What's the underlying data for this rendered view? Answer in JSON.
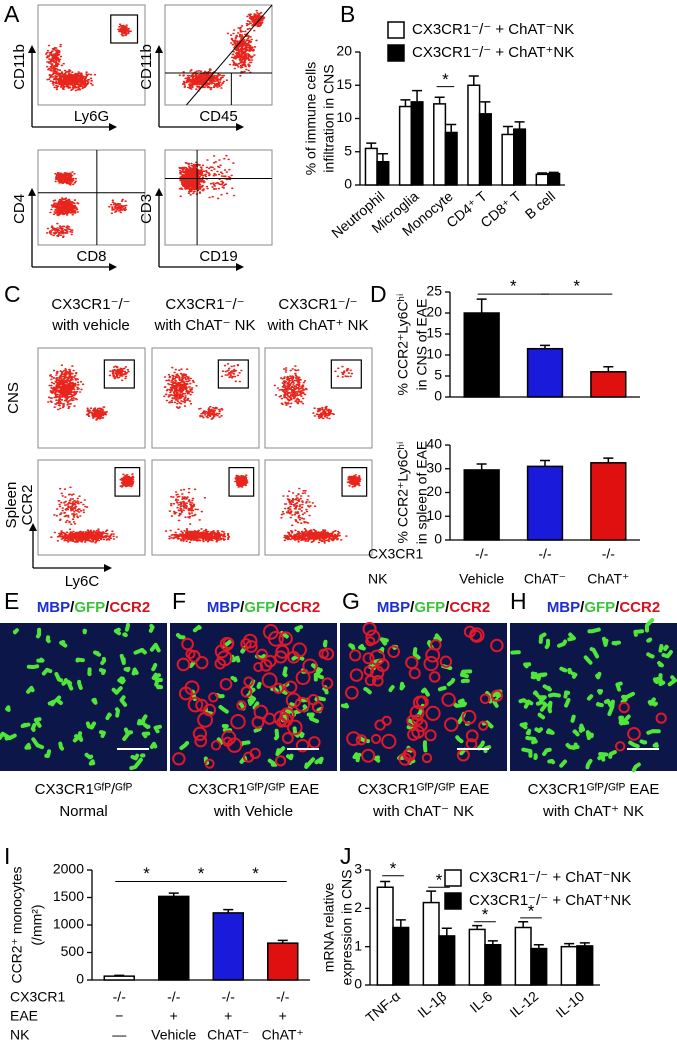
{
  "panels": {
    "letters": [
      "A",
      "B",
      "C",
      "D",
      "E",
      "F",
      "G",
      "H",
      "I",
      "J"
    ],
    "flow_a": [
      [
        "CD11b",
        "Ly6G"
      ],
      [
        "CD11b",
        "CD45"
      ],
      [
        "CD4",
        "CD8"
      ],
      [
        "CD3",
        "CD19"
      ]
    ],
    "flow_c": {
      "columns": [
        [
          "CX3CR1⁻/⁻",
          "with vehicle"
        ],
        [
          "CX3CR1⁻/⁻",
          "with ChAT⁻ NK"
        ],
        [
          "CX3CR1⁻/⁻",
          "with ChAT⁺ NK"
        ]
      ],
      "rows": [
        "CNS",
        "Spleen"
      ],
      "y_axis": "CCR2",
      "x_axis": "Ly6C"
    },
    "images": {
      "stains": [
        "MBP",
        "GFP",
        "CCR2"
      ],
      "stain_separator": "/",
      "captions": [
        [
          "CX3CR1ᴳᶠᴾ/ᴳᶠᴾ",
          "Normal"
        ],
        [
          "CX3CR1ᴳᶠᴾ/ᴳᶠᴾ EAE",
          "with Vehicle"
        ],
        [
          "CX3CR1ᴳᶠᴾ/ᴳᶠᴾ EAE",
          "with ChAT⁻ NK"
        ],
        [
          "CX3CR1ᴳᶠᴾ/ᴳᶠᴾ EAE",
          "with ChAT⁺ NK"
        ]
      ]
    }
  },
  "chart_data": [
    {
      "type": "bar",
      "ylabel": [
        "% of immune cells",
        "infiltration in CNS"
      ],
      "categories": [
        "Neutrophil",
        "Microglia",
        "Monocyte",
        "CD4⁺ T",
        "CD8⁺ T",
        "B cell"
      ],
      "series": [
        {
          "name": "CX3CR1⁻/⁻ + ChAT⁻NK",
          "color": "#ffffff",
          "values": [
            5.5,
            11.8,
            12.2,
            15,
            7.6,
            1.6
          ],
          "errors": [
            0.8,
            1,
            1,
            1.4,
            1.2,
            0.2
          ]
        },
        {
          "name": "CX3CR1⁻/⁻ + ChAT⁺NK",
          "color": "#000000",
          "values": [
            3.5,
            12.5,
            7.9,
            10.7,
            8.4,
            1.7
          ],
          "errors": [
            1.2,
            1.7,
            1.2,
            1.8,
            1.1,
            0.2
          ]
        }
      ],
      "ylim": [
        0,
        20
      ],
      "yticks": [
        0,
        5,
        10,
        15,
        20
      ],
      "annotations": [
        "*"
      ]
    },
    {
      "type": "bar",
      "ylabel": [
        "% CCR2⁺Ly6Cʰⁱ",
        "in CNS of EAE"
      ],
      "values": [
        20,
        11.5,
        6
      ],
      "errors": [
        3.3,
        0.8,
        1.2
      ],
      "colors": [
        "#000000",
        "#1a1adb",
        "#e01010"
      ],
      "ylim": [
        0,
        25
      ],
      "yticks": [
        0,
        5,
        10,
        15,
        20,
        25
      ],
      "annotations": [
        "*",
        "*"
      ]
    },
    {
      "type": "bar",
      "ylabel": [
        "% CCR2⁺Ly6Cʰⁱ",
        "in spleen of EAE"
      ],
      "values": [
        29.5,
        31,
        32.5
      ],
      "errors": [
        2.5,
        2.5,
        2
      ],
      "colors": [
        "#000000",
        "#1a1adb",
        "#e01010"
      ],
      "ylim": [
        0,
        40
      ],
      "yticks": [
        0,
        10,
        20,
        30,
        40
      ],
      "category_rows": [
        {
          "label": "CX3CR1",
          "values": [
            "-/-",
            "-/-",
            "-/-"
          ]
        },
        {
          "label": "NK",
          "values": [
            "Vehicle",
            "ChAT⁻",
            "ChAT⁺"
          ]
        }
      ]
    },
    {
      "type": "bar",
      "ylabel": [
        "CCR2⁺ monocytes",
        "(/mm²)"
      ],
      "values": [
        70,
        1520,
        1220,
        670
      ],
      "errors": [
        15,
        60,
        60,
        50
      ],
      "colors": [
        "#ffffff",
        "#000000",
        "#1a1adb",
        "#e01010"
      ],
      "ylim": [
        0,
        2000
      ],
      "yticks": [
        0,
        500,
        1000,
        1500,
        2000
      ],
      "annotations": [
        "*",
        "*",
        "*"
      ],
      "category_rows": [
        {
          "label": "CX3CR1",
          "values": [
            "-/-",
            "-/-",
            "-/-",
            "-/-"
          ]
        },
        {
          "label": "EAE",
          "values": [
            "−",
            "+",
            "+",
            "+"
          ]
        },
        {
          "label": "NK",
          "values": [
            "—",
            "Vehicle",
            "ChAT⁻",
            "ChAT⁺"
          ]
        }
      ]
    },
    {
      "type": "bar",
      "ylabel": [
        "mRNA relative",
        "expression in CNS"
      ],
      "categories": [
        "TNF-α",
        "IL-1β",
        "IL-6",
        "IL-12",
        "IL-10"
      ],
      "series": [
        {
          "name": "CX3CR1⁻/⁻ + ChAT⁻NK",
          "color": "#ffffff",
          "values": [
            2.55,
            2.15,
            1.45,
            1.5,
            1.0
          ],
          "errors": [
            0.15,
            0.3,
            0.1,
            0.15,
            0.08
          ]
        },
        {
          "name": "CX3CR1⁻/⁻ + ChAT⁺NK",
          "color": "#000000",
          "values": [
            1.5,
            1.28,
            1.05,
            0.95,
            1.02
          ],
          "errors": [
            0.2,
            0.2,
            0.1,
            0.1,
            0.08
          ]
        }
      ],
      "ylim": [
        0,
        3
      ],
      "yticks": [
        0,
        1,
        2,
        3
      ],
      "annotations": [
        "*",
        "*",
        "*",
        "*"
      ]
    }
  ]
}
